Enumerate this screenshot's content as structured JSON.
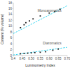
{
  "chart_data": {
    "type": "scatter",
    "title": "",
    "xlabel": "Luminometry Index",
    "ylabel": "Content (% volume)",
    "xlim": [
      0.4,
      0.7
    ],
    "ylim": [
      0,
      18
    ],
    "xticks": [
      0.4,
      0.45,
      {
        "value": 0.5,
        "label": "0.50"
      },
      {
        "value": 0.55,
        "label": "0.55"
      },
      {
        "value": 0.6,
        "label": "0.60"
      },
      {
        "value": 0.65,
        "label": "0.65"
      },
      {
        "value": 0.7,
        "label": "0.70"
      }
    ],
    "yticks": [
      0,
      2,
      4,
      6,
      8,
      10,
      12,
      14,
      16,
      18
    ],
    "grid": false,
    "series": [
      {
        "type": "scatter",
        "color": "#1a1a1a",
        "marker": "square",
        "x": [
          0.44,
          0.46,
          0.47,
          0.49,
          0.51,
          0.55,
          0.6,
          0.63,
          0.66
        ],
        "values": [
          9.5,
          10.5,
          11.2,
          11.8,
          12.5,
          13.5,
          14.5,
          15.0,
          15.8
        ]
      },
      {
        "type": "scatter",
        "color": "#1a1a1a",
        "marker": "square",
        "x": [
          0.44,
          0.46,
          0.48,
          0.5,
          0.52,
          0.55,
          0.58,
          0.62,
          0.65
        ],
        "values": [
          0.6,
          0.7,
          0.8,
          0.9,
          1.0,
          1.1,
          1.3,
          1.8,
          2.2
        ]
      },
      {
        "type": "line",
        "color": "#00ccee",
        "line_style": "dashed",
        "x": [
          0.4,
          0.7
        ],
        "values": [
          7.5,
          17.0
        ]
      },
      {
        "type": "line",
        "color": "#00ccee",
        "line_style": "dashed",
        "x": [
          0.4,
          0.7
        ],
        "values": [
          0.2,
          2.8
        ]
      }
    ],
    "annotations": [
      {
        "text": "Monoaromatics",
        "x": 0.535,
        "y": 14.8,
        "color": "#555555"
      },
      {
        "text": "Diaromatics",
        "x": 0.565,
        "y": 3.5,
        "color": "#555555"
      }
    ]
  }
}
